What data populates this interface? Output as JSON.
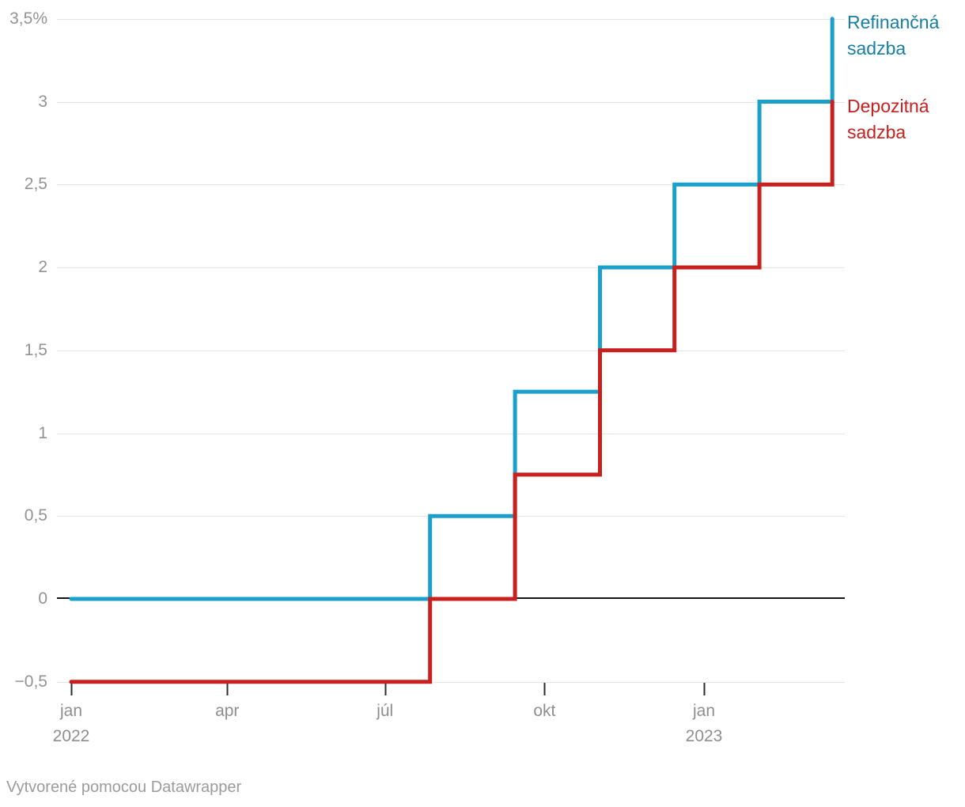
{
  "chart_data": {
    "type": "line",
    "subtype": "step",
    "title": "",
    "x_axis": {
      "range": [
        "2022-01-01",
        "2023-03-16"
      ],
      "ticks": [
        {
          "date": "2022-01-01",
          "label": "jan",
          "year_label": "2022"
        },
        {
          "date": "2022-04-01",
          "label": "apr"
        },
        {
          "date": "2022-07-01",
          "label": "júl"
        },
        {
          "date": "2022-10-01",
          "label": "okt"
        },
        {
          "date": "2023-01-01",
          "label": "jan",
          "year_label": "2023"
        }
      ]
    },
    "y_axis": {
      "unit": "%",
      "range": [
        -0.5,
        3.5
      ],
      "grid": true,
      "ticks": [
        {
          "value": 3.5,
          "label": "3,5%"
        },
        {
          "value": 3,
          "label": "3"
        },
        {
          "value": 2.5,
          "label": "2,5"
        },
        {
          "value": 2,
          "label": "2"
        },
        {
          "value": 1.5,
          "label": "1,5"
        },
        {
          "value": 1,
          "label": "1"
        },
        {
          "value": 0.5,
          "label": "0,5"
        },
        {
          "value": 0,
          "label": "0",
          "baseline": true
        },
        {
          "value": -0.5,
          "label": "−0,5"
        }
      ]
    },
    "series": [
      {
        "id": "refinancna-sadzba",
        "name": "Refinančná sadzba",
        "color": "#1aa0cb",
        "label_color": "#167ea3",
        "points": [
          [
            "2022-01-01",
            0
          ],
          [
            "2022-07-27",
            0.5
          ],
          [
            "2022-09-14",
            1.25
          ],
          [
            "2022-11-02",
            2.0
          ],
          [
            "2022-12-15",
            2.5
          ],
          [
            "2023-02-02",
            3.0
          ],
          [
            "2023-03-16",
            3.5
          ]
        ]
      },
      {
        "id": "depozitna-sadzba",
        "name": "Depozitná sadzba",
        "color": "#c8201f",
        "label_color": "#c8201f",
        "points": [
          [
            "2022-01-01",
            -0.5
          ],
          [
            "2022-07-27",
            0
          ],
          [
            "2022-09-14",
            0.75
          ],
          [
            "2022-11-02",
            1.5
          ],
          [
            "2022-12-15",
            2.0
          ],
          [
            "2023-02-02",
            2.5
          ],
          [
            "2023-03-16",
            3.0
          ]
        ]
      }
    ],
    "legend_position": "right-of-line-ends"
  },
  "colors": {
    "grid": "#e4e4e4",
    "zero_line": "#141414",
    "tick": "#2b2b2b",
    "axis_text": "#8e8e8e"
  },
  "footer": {
    "attribution": "Vytvorené pomocou Datawrapper"
  }
}
